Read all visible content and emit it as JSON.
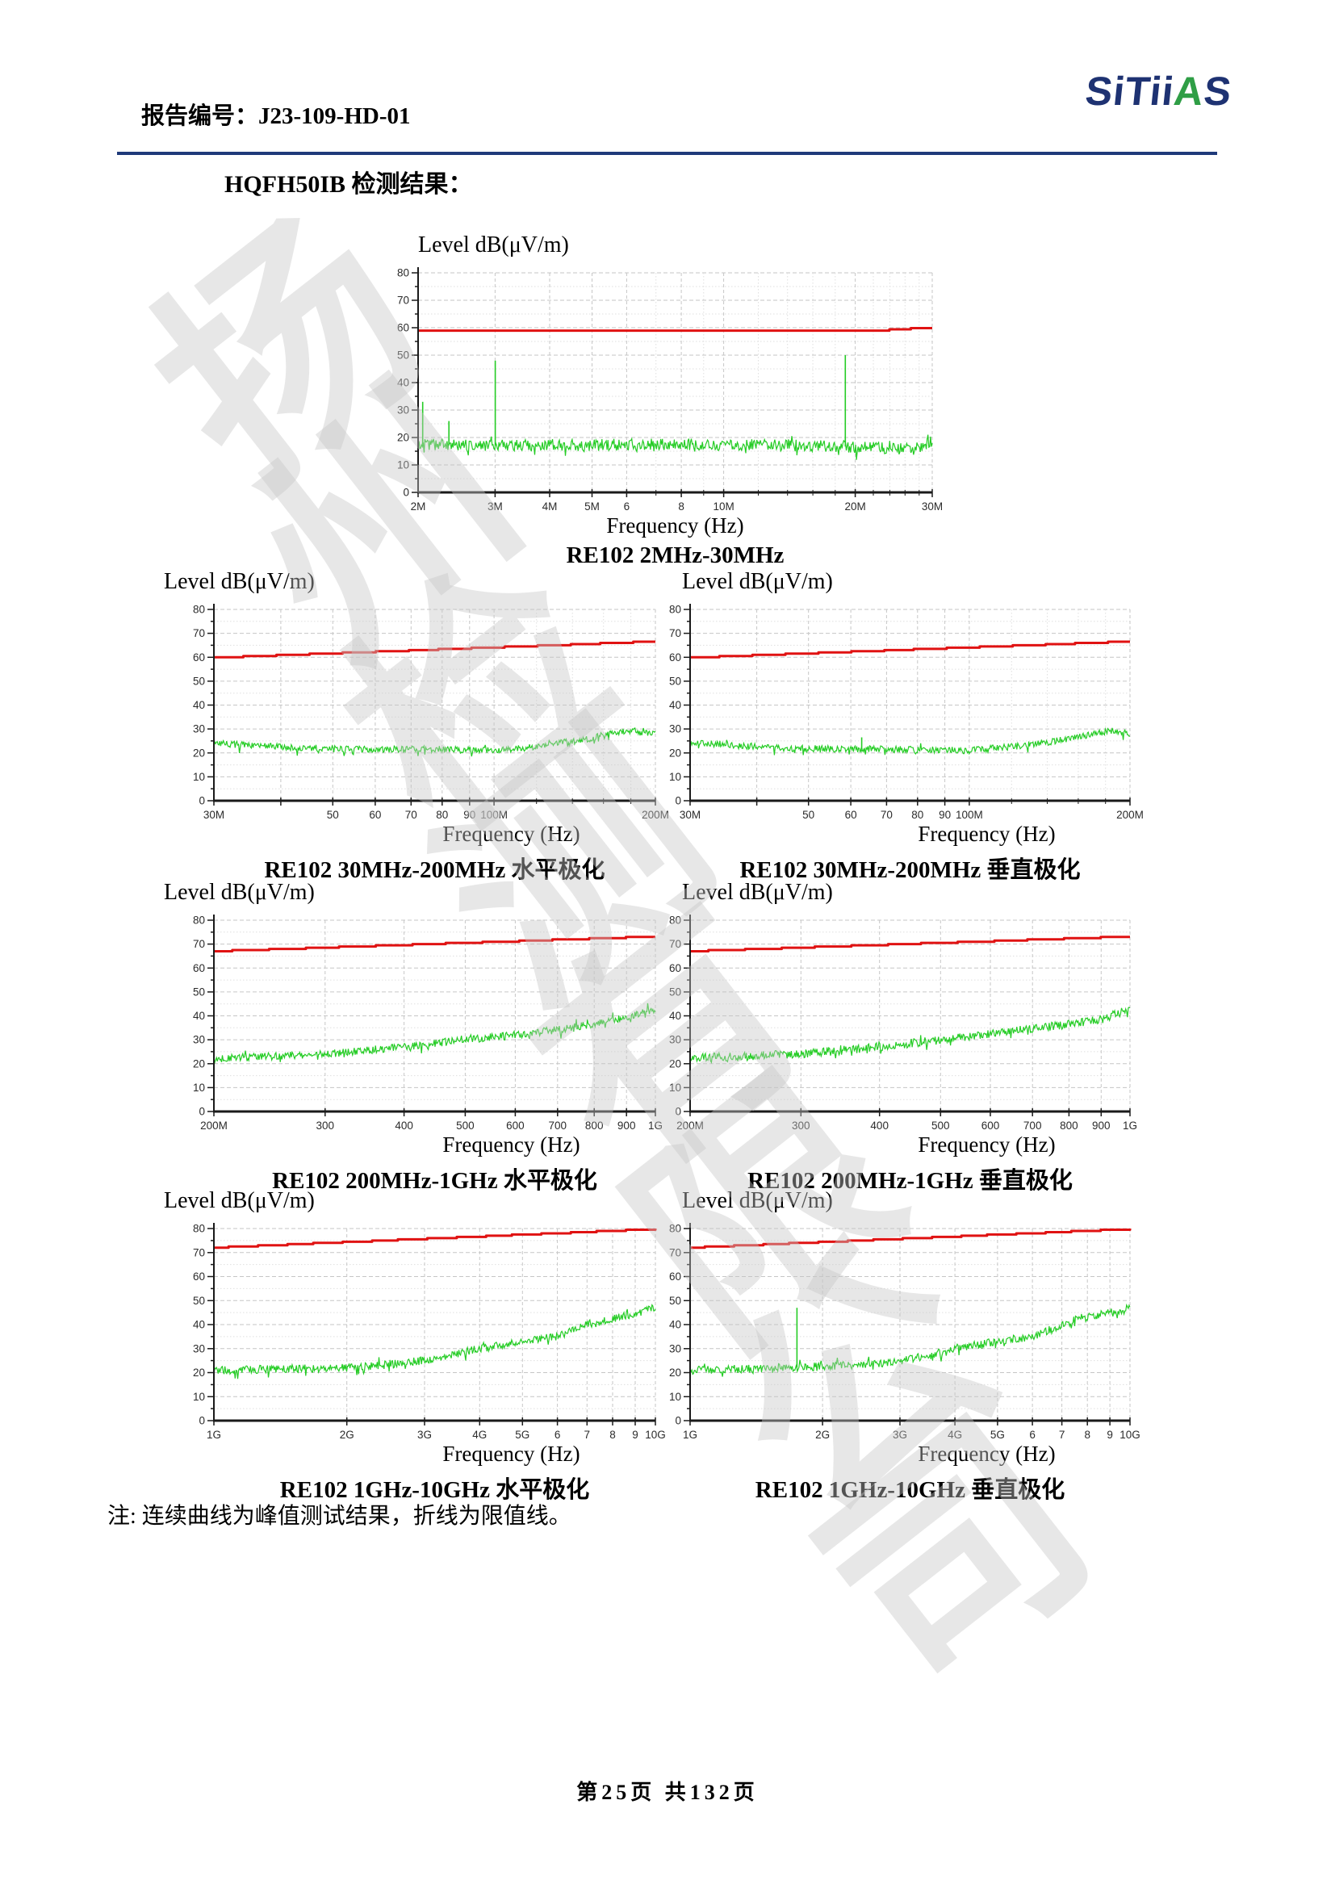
{
  "header": {
    "report_label": "报告编号：J23-109-HD-01",
    "logo": {
      "navy1": "SiTii",
      "green": "A",
      "navy2": "S"
    }
  },
  "page_title": "HQFH50IB 检测结果：",
  "note": "注: 连续曲线为峰值测试结果，折线为限值线。",
  "footer": {
    "page_text": "第25页 共132页"
  },
  "watermark": {
    "characters": [
      "扬",
      "州",
      "检",
      "测",
      "有",
      "限",
      "公",
      "司"
    ]
  },
  "colors": {
    "logo_navy": "#1e3272",
    "logo_green": "#2f9e46",
    "header_rule_blue": "#1f3a7a",
    "limit_red": "#e01212",
    "trace_green": "#24cc24"
  },
  "chart_data": [
    {
      "id": "re102-2m-30m",
      "type": "line",
      "title": "Level dB(μV/m)",
      "xlabel": "Frequency (Hz)",
      "caption": "RE102 2MHz-30MHz",
      "fmin": 2000000,
      "fmax": 30000000,
      "ylim": [
        0,
        80
      ],
      "ytick_step": 10,
      "xticks": [
        {
          "f": 2000000,
          "label": "2M"
        },
        {
          "f": 3000000,
          "label": "3M"
        },
        {
          "f": 4000000,
          "label": "4M"
        },
        {
          "f": 5000000,
          "label": "5M"
        },
        {
          "f": 6000000,
          "label": "6"
        },
        {
          "f": 8000000,
          "label": "8"
        },
        {
          "f": 10000000,
          "label": "10M"
        },
        {
          "f": 20000000,
          "label": "20M"
        },
        {
          "f": 30000000,
          "label": "30M"
        }
      ],
      "xminor": [
        7000000,
        9000000,
        12000000,
        14000000,
        16000000,
        18000000,
        22000000,
        24000000,
        26000000,
        28000000
      ],
      "limit": [
        [
          0,
          59
        ],
        [
          0.9,
          59
        ],
        [
          0.95,
          59.6
        ],
        [
          1,
          59.9
        ]
      ],
      "limit_step": 0.45,
      "trace_envelope": [
        [
          0,
          17.5
        ],
        [
          0.1,
          17
        ],
        [
          0.5,
          17.5
        ],
        [
          0.8,
          17
        ],
        [
          0.93,
          15.8
        ],
        [
          0.97,
          16
        ],
        [
          1,
          18.5
        ]
      ],
      "trace_noise": 2.2,
      "spikes": [
        [
          0.009,
          33
        ],
        [
          0.06,
          26
        ],
        [
          0.15,
          48
        ],
        [
          0.831,
          50
        ]
      ],
      "seed": 3
    },
    {
      "id": "re102-30m-200m-horizontal",
      "type": "line",
      "title": "Level dB(μV/m)",
      "xlabel": "Frequency (Hz)",
      "caption": "RE102 30MHz-200MHz 水平极化",
      "fmin": 30000000,
      "fmax": 200000000,
      "ylim": [
        0,
        80
      ],
      "ytick_step": 10,
      "xticks": [
        {
          "f": 30000000,
          "label": "30M"
        },
        {
          "f": 40000000,
          "label": ""
        },
        {
          "f": 50000000,
          "label": "50"
        },
        {
          "f": 60000000,
          "label": "60"
        },
        {
          "f": 70000000,
          "label": "70"
        },
        {
          "f": 80000000,
          "label": "80"
        },
        {
          "f": 90000000,
          "label": "90"
        },
        {
          "f": 100000000,
          "label": "100M"
        },
        {
          "f": 200000000,
          "label": "200M"
        }
      ],
      "xminor": [
        120000000,
        140000000,
        160000000,
        180000000
      ],
      "limit": [
        [
          0,
          59.8
        ],
        [
          1,
          66.6
        ]
      ],
      "limit_step": 0.5,
      "trace_envelope": [
        [
          0,
          24
        ],
        [
          0.15,
          22.5
        ],
        [
          0.3,
          21.5
        ],
        [
          0.5,
          21.5
        ],
        [
          0.62,
          21
        ],
        [
          0.7,
          22
        ],
        [
          0.78,
          24
        ],
        [
          0.85,
          26
        ],
        [
          0.9,
          28
        ],
        [
          0.94,
          29.5
        ],
        [
          0.97,
          28.5
        ],
        [
          1,
          28.5
        ]
      ],
      "trace_noise": 1.4,
      "spikes": [],
      "seed": 7
    },
    {
      "id": "re102-30m-200m-vertical",
      "type": "line",
      "title": "Level dB(μV/m)",
      "xlabel": "Frequency (Hz)",
      "caption": "RE102 30MHz-200MHz 垂直极化",
      "fmin": 30000000,
      "fmax": 200000000,
      "ylim": [
        0,
        80
      ],
      "ytick_step": 10,
      "xticks": [
        {
          "f": 30000000,
          "label": "30M"
        },
        {
          "f": 40000000,
          "label": ""
        },
        {
          "f": 50000000,
          "label": "50"
        },
        {
          "f": 60000000,
          "label": "60"
        },
        {
          "f": 70000000,
          "label": "70"
        },
        {
          "f": 80000000,
          "label": "80"
        },
        {
          "f": 90000000,
          "label": "90"
        },
        {
          "f": 100000000,
          "label": "100M"
        },
        {
          "f": 200000000,
          "label": "200M"
        }
      ],
      "xminor": [
        120000000,
        140000000,
        160000000,
        180000000
      ],
      "limit": [
        [
          0,
          59.8
        ],
        [
          1,
          66.6
        ]
      ],
      "limit_step": 0.5,
      "trace_envelope": [
        [
          0,
          24.5
        ],
        [
          0.2,
          22
        ],
        [
          0.45,
          21.5
        ],
        [
          0.635,
          21
        ],
        [
          0.75,
          23
        ],
        [
          0.85,
          25.5
        ],
        [
          0.92,
          28
        ],
        [
          0.96,
          29.5
        ],
        [
          1,
          28
        ]
      ],
      "trace_noise": 1.4,
      "spikes": [
        [
          0.39,
          26.5
        ]
      ],
      "seed": 11
    },
    {
      "id": "re102-200m-1g-horizontal",
      "type": "line",
      "title": "Level dB(μV/m)",
      "xlabel": "Frequency (Hz)",
      "caption": "RE102 200MHz-1GHz 水平极化",
      "fmin": 200000000,
      "fmax": 1000000000,
      "ylim": [
        0,
        80
      ],
      "ytick_step": 10,
      "xticks": [
        {
          "f": 200000000,
          "label": "200M"
        },
        {
          "f": 300000000,
          "label": "300"
        },
        {
          "f": 400000000,
          "label": "400"
        },
        {
          "f": 500000000,
          "label": "500"
        },
        {
          "f": 600000000,
          "label": "600"
        },
        {
          "f": 700000000,
          "label": "700"
        },
        {
          "f": 800000000,
          "label": "800"
        },
        {
          "f": 900000000,
          "label": "900"
        },
        {
          "f": 1000000000,
          "label": "1G"
        }
      ],
      "xminor": [],
      "limit": [
        [
          0,
          67
        ],
        [
          1,
          73.2
        ]
      ],
      "limit_step": 0.5,
      "trace_envelope": [
        [
          0,
          22
        ],
        [
          0.25,
          24
        ],
        [
          0.43,
          27
        ],
        [
          0.57,
          30
        ],
        [
          0.68,
          32
        ],
        [
          0.77,
          34
        ],
        [
          0.84,
          36
        ],
        [
          0.9,
          38
        ],
        [
          0.95,
          40
        ],
        [
          0.98,
          42
        ],
        [
          1,
          43
        ]
      ],
      "trace_noise": 1.6,
      "spikes": [],
      "seed": 13
    },
    {
      "id": "re102-200m-1g-vertical",
      "type": "line",
      "title": "Level dB(μV/m)",
      "xlabel": "Frequency (Hz)",
      "caption": "RE102 200MHz-1GHz 垂直极化",
      "fmin": 200000000,
      "fmax": 1000000000,
      "ylim": [
        0,
        80
      ],
      "ytick_step": 10,
      "xticks": [
        {
          "f": 200000000,
          "label": "200M"
        },
        {
          "f": 300000000,
          "label": "300"
        },
        {
          "f": 400000000,
          "label": "400"
        },
        {
          "f": 500000000,
          "label": "500"
        },
        {
          "f": 600000000,
          "label": "600"
        },
        {
          "f": 700000000,
          "label": "700"
        },
        {
          "f": 800000000,
          "label": "800"
        },
        {
          "f": 900000000,
          "label": "900"
        },
        {
          "f": 1000000000,
          "label": "1G"
        }
      ],
      "xminor": [],
      "limit": [
        [
          0,
          67
        ],
        [
          1,
          73.2
        ]
      ],
      "limit_step": 0.5,
      "trace_envelope": [
        [
          0,
          22.5
        ],
        [
          0.252,
          24
        ],
        [
          0.43,
          27
        ],
        [
          0.57,
          30
        ],
        [
          0.68,
          32.5
        ],
        [
          0.777,
          34.5
        ],
        [
          0.86,
          36.5
        ],
        [
          0.934,
          38.5
        ],
        [
          0.97,
          41
        ],
        [
          1,
          42.5
        ]
      ],
      "trace_noise": 1.8,
      "spikes": [],
      "seed": 17
    },
    {
      "id": "re102-1g-10g-horizontal",
      "type": "line",
      "title": "Level dB(μV/m)",
      "xlabel": "Frequency (Hz)",
      "caption": "RE102 1GHz-10GHz 水平极化",
      "fmin": 1000000000,
      "fmax": 10000000000,
      "ylim": [
        0,
        80
      ],
      "ytick_step": 10,
      "xticks": [
        {
          "f": 1000000000,
          "label": "1G"
        },
        {
          "f": 2000000000,
          "label": "2G"
        },
        {
          "f": 3000000000,
          "label": "3G"
        },
        {
          "f": 4000000000,
          "label": "4G"
        },
        {
          "f": 5000000000,
          "label": "5G"
        },
        {
          "f": 6000000000,
          "label": "6"
        },
        {
          "f": 7000000000,
          "label": "7"
        },
        {
          "f": 8000000000,
          "label": "8"
        },
        {
          "f": 9000000000,
          "label": "9"
        },
        {
          "f": 10000000000,
          "label": "10G"
        }
      ],
      "xminor": [],
      "limit": [
        [
          0,
          72
        ],
        [
          1,
          79.8
        ]
      ],
      "limit_step": 0.5,
      "trace_envelope": [
        [
          0,
          21
        ],
        [
          0.301,
          22
        ],
        [
          0.4,
          23.5
        ],
        [
          0.477,
          25
        ],
        [
          0.602,
          30
        ],
        [
          0.699,
          33
        ],
        [
          0.778,
          35
        ],
        [
          0.845,
          40
        ],
        [
          0.903,
          42.5
        ],
        [
          0.954,
          44.5
        ],
        [
          1,
          47.5
        ]
      ],
      "trace_noise": 1.7,
      "spikes": [],
      "seed": 19
    },
    {
      "id": "re102-1g-10g-vertical",
      "type": "line",
      "title": "Level dB(μV/m)",
      "xlabel": "Frequency (Hz)",
      "caption": "RE102 1GHz-10GHz 垂直极化",
      "fmin": 1000000000,
      "fmax": 10000000000,
      "ylim": [
        0,
        80
      ],
      "ytick_step": 10,
      "xticks": [
        {
          "f": 1000000000,
          "label": "1G"
        },
        {
          "f": 2000000000,
          "label": "2G"
        },
        {
          "f": 3000000000,
          "label": "3G"
        },
        {
          "f": 4000000000,
          "label": "4G"
        },
        {
          "f": 5000000000,
          "label": "5G"
        },
        {
          "f": 6000000000,
          "label": "6"
        },
        {
          "f": 7000000000,
          "label": "7"
        },
        {
          "f": 8000000000,
          "label": "8"
        },
        {
          "f": 9000000000,
          "label": "9"
        },
        {
          "f": 10000000000,
          "label": "10G"
        }
      ],
      "xminor": [],
      "limit": [
        [
          0,
          72
        ],
        [
          1,
          79.8
        ]
      ],
      "limit_step": 0.5,
      "trace_envelope": [
        [
          0,
          21
        ],
        [
          0.301,
          22.5
        ],
        [
          0.477,
          24.5
        ],
        [
          0.602,
          30
        ],
        [
          0.699,
          33
        ],
        [
          0.778,
          35
        ],
        [
          0.845,
          40
        ],
        [
          0.903,
          43
        ],
        [
          0.954,
          45
        ],
        [
          1,
          46.5
        ]
      ],
      "trace_noise": 1.7,
      "spikes": [
        [
          0.243,
          47
        ]
      ],
      "seed": 23
    }
  ]
}
